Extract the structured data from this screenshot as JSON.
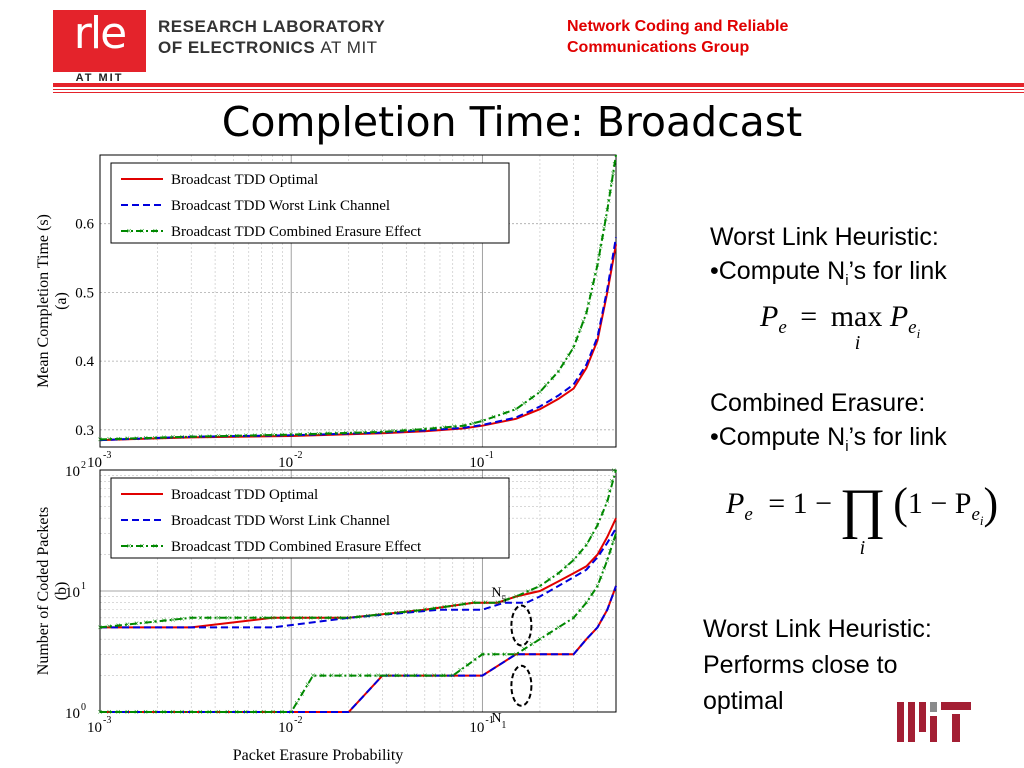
{
  "header": {
    "logo_text": "rle",
    "logo_sub": "AT MIT",
    "lab_line1": "RESEARCH LABORATORY",
    "lab_line2_bold": "OF ELECTRONICS",
    "lab_line2_light": "AT MIT",
    "group_line1": "Network Coding and Reliable",
    "group_line2": "Communications Group"
  },
  "title": "Completion Time: Broadcast",
  "sidebar": {
    "worst_heading": "Worst Link Heuristic:",
    "worst_bullet_a": "•Compute N",
    "worst_bullet_sub": "i",
    "worst_bullet_b": "’s for link",
    "combined_heading": "Combined Erasure:",
    "combined_bullet_a": "•Compute N",
    "combined_bullet_sub": "i",
    "combined_bullet_b": "’s for link",
    "conclusion_1": "Worst Link Heuristic:",
    "conclusion_2": "Performs close to",
    "conclusion_3": "optimal"
  },
  "equations": {
    "eq1_lhs": "P",
    "eq1_lhs_sub": "e",
    "eq1_eq": "=",
    "eq1_op": "max",
    "eq1_op_sub": "i",
    "eq1_rhs": "P",
    "eq1_rhs_sub": "e",
    "eq1_rhs_subsub": "i",
    "eq2_lhs": "P",
    "eq2_lhs_sub": "e",
    "eq2_rhs_a": "= 1 −",
    "eq2_prod": "∏",
    "eq2_prod_sub": "i",
    "eq2_inner": "1 − P",
    "eq2_inner_sub": "e",
    "eq2_inner_subsub": "i"
  },
  "colors": {
    "optimal": "#e00000",
    "worst": "#0000dd",
    "combined": "#008800",
    "brand_red": "#e4232b"
  },
  "chart_data": [
    {
      "type": "line",
      "panel": "a",
      "ylabel": "Mean Completion Time (s)",
      "ylabel_sub": "(a)",
      "xscale": "log",
      "xlim": [
        0.001,
        0.5
      ],
      "ylim": [
        0.275,
        0.7
      ],
      "xticks": [
        0.001,
        0.01,
        0.1
      ],
      "xtick_base": [
        "10",
        "10",
        "10"
      ],
      "xtick_exp": [
        "-3",
        "-2",
        "-1"
      ],
      "yticks": [
        0.3,
        0.4,
        0.5,
        0.6
      ],
      "ytick_labels": [
        "0.3",
        "0.4",
        "0.5",
        "0.6"
      ],
      "grid": true,
      "legend_position": "top-left",
      "legend": [
        "Broadcast TDD Optimal",
        "Broadcast TDD Worst Link Channel",
        "Broadcast TDD Combined Erasure Effect"
      ],
      "x": [
        0.001,
        0.003,
        0.01,
        0.03,
        0.05,
        0.08,
        0.1,
        0.15,
        0.2,
        0.25,
        0.3,
        0.35,
        0.4,
        0.45,
        0.5
      ],
      "series": [
        {
          "name": "Broadcast TDD Optimal",
          "values": [
            0.285,
            0.289,
            0.291,
            0.295,
            0.298,
            0.302,
            0.306,
            0.316,
            0.33,
            0.345,
            0.36,
            0.39,
            0.43,
            0.5,
            0.57
          ]
        },
        {
          "name": "Broadcast TDD Worst Link Channel",
          "values": [
            0.285,
            0.29,
            0.292,
            0.296,
            0.299,
            0.303,
            0.307,
            0.318,
            0.334,
            0.35,
            0.366,
            0.395,
            0.435,
            0.505,
            0.58
          ]
        },
        {
          "name": "Broadcast TDD Combined Erasure Effect",
          "values": [
            0.286,
            0.29,
            0.293,
            0.297,
            0.301,
            0.306,
            0.313,
            0.33,
            0.355,
            0.385,
            0.42,
            0.47,
            0.54,
            0.62,
            0.7
          ]
        }
      ]
    },
    {
      "type": "line",
      "panel": "b",
      "ylabel": "Number of Coded Packets",
      "ylabel_sub": "(b)",
      "xlabel": "Packet Erasure Probability",
      "xscale": "log",
      "yscale": "log",
      "xlim": [
        0.001,
        0.5
      ],
      "ylim": [
        1,
        100
      ],
      "xticks": [
        0.001,
        0.01,
        0.1
      ],
      "xtick_base": [
        "10",
        "10",
        "10"
      ],
      "xtick_exp": [
        "-3",
        "-2",
        "-1"
      ],
      "yticks": [
        1,
        10,
        100
      ],
      "ytick_base": [
        "10",
        "10",
        "10"
      ],
      "ytick_exp": [
        "0",
        "1",
        "2"
      ],
      "grid": true,
      "legend_position": "top-left",
      "legend": [
        "Broadcast TDD Optimal",
        "Broadcast TDD Worst Link Channel",
        "Broadcast TDD Combined Erasure Effect"
      ],
      "annotations": [
        {
          "text": "N",
          "sub": "5",
          "x": 0.16,
          "y": 8.5
        },
        {
          "text": "N",
          "sub": "1",
          "x": 0.16,
          "y": 2.7
        }
      ],
      "curves": [
        {
          "series": "Broadcast TDD Optimal",
          "group": "N5",
          "x": [
            0.001,
            0.003,
            0.008,
            0.02,
            0.05,
            0.09,
            0.12,
            0.15,
            0.2,
            0.25,
            0.3,
            0.35,
            0.4,
            0.45,
            0.5
          ],
          "y": [
            5,
            5,
            6,
            6,
            7,
            8,
            8,
            9,
            10,
            12,
            14,
            16,
            20,
            28,
            40
          ]
        },
        {
          "series": "Broadcast TDD Worst Link Channel",
          "group": "N5",
          "x": [
            0.001,
            0.003,
            0.008,
            0.02,
            0.06,
            0.1,
            0.13,
            0.17,
            0.2,
            0.25,
            0.3,
            0.35,
            0.4,
            0.45,
            0.5
          ],
          "y": [
            5,
            5,
            5,
            6,
            7,
            7,
            8,
            8,
            9,
            11,
            13,
            15,
            19,
            25,
            33
          ]
        },
        {
          "series": "Broadcast TDD Combined Erasure Effect",
          "group": "N5",
          "x": [
            0.001,
            0.003,
            0.008,
            0.02,
            0.05,
            0.09,
            0.12,
            0.15,
            0.2,
            0.25,
            0.3,
            0.35,
            0.4,
            0.45,
            0.5
          ],
          "y": [
            5,
            6,
            6,
            6,
            7,
            8,
            8,
            9,
            11,
            14,
            18,
            24,
            35,
            55,
            120
          ]
        },
        {
          "series": "Broadcast TDD Optimal",
          "group": "N1",
          "x": [
            0.001,
            0.02,
            0.03,
            0.1,
            0.15,
            0.2,
            0.3,
            0.35,
            0.4,
            0.45,
            0.5
          ],
          "y": [
            1,
            1,
            2,
            2,
            3,
            3,
            3,
            4,
            5,
            7,
            11
          ]
        },
        {
          "series": "Broadcast TDD Worst Link Channel",
          "group": "N1",
          "x": [
            0.001,
            0.02,
            0.03,
            0.1,
            0.15,
            0.2,
            0.3,
            0.35,
            0.4,
            0.45,
            0.5
          ],
          "y": [
            1,
            1,
            2,
            2,
            3,
            3,
            3,
            4,
            5,
            7,
            11
          ]
        },
        {
          "series": "Broadcast TDD Combined Erasure Effect",
          "group": "N1",
          "x": [
            0.001,
            0.01,
            0.013,
            0.07,
            0.1,
            0.15,
            0.2,
            0.25,
            0.3,
            0.35,
            0.4,
            0.45,
            0.5
          ],
          "y": [
            1,
            1,
            2,
            2,
            3,
            3,
            4,
            5,
            6,
            8,
            11,
            18,
            30
          ]
        }
      ]
    }
  ]
}
